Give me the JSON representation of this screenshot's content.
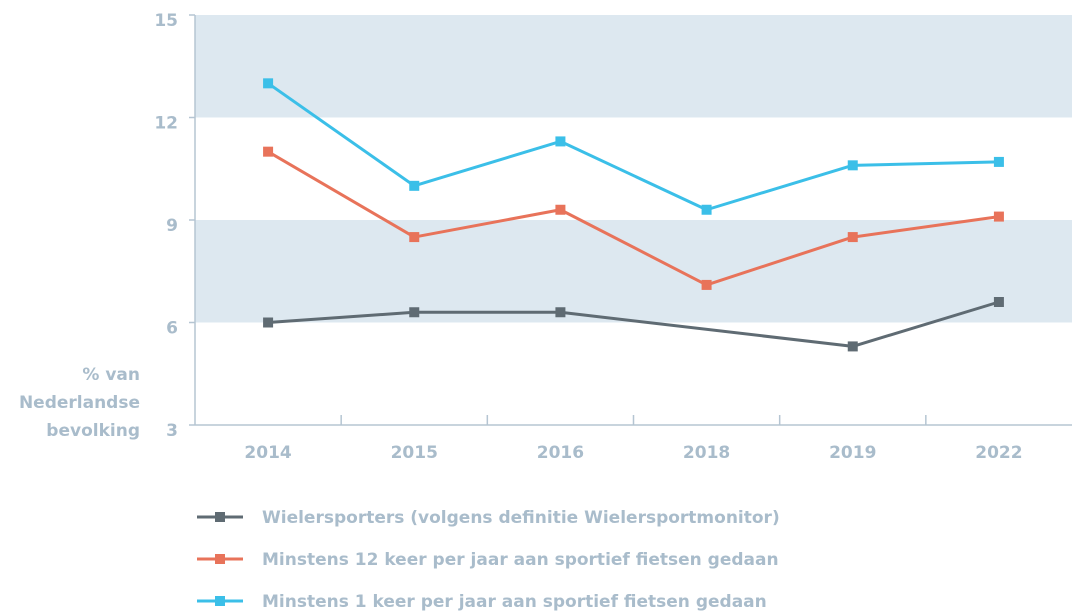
{
  "chart_data": {
    "type": "line",
    "ylabel": [
      "% van",
      "Nederlandse",
      "bevolking"
    ],
    "categories": [
      "2014",
      "2015",
      "2016",
      "2018",
      "2019",
      "2022"
    ],
    "series": [
      {
        "name": "Wielersporters (volgens definitie Wielersportmonitor)",
        "color": "#5f6b73",
        "values": [
          6,
          6.3,
          6.3,
          null,
          5.3,
          6.6
        ]
      },
      {
        "name": "Minstens 12 keer per jaar aan sportief fietsen gedaan",
        "color": "#e8735a",
        "values": [
          11,
          8.5,
          9.3,
          7.1,
          8.5,
          9.1
        ]
      },
      {
        "name": "Minstens 1 keer per jaar aan sportief fietsen gedaan",
        "color": "#3bbfe8",
        "values": [
          13,
          10,
          11.3,
          9.3,
          10.6,
          10.7
        ]
      }
    ],
    "ylim": [
      3,
      15
    ],
    "yticks": [
      3,
      6,
      9,
      12,
      15
    ],
    "grid": true
  }
}
